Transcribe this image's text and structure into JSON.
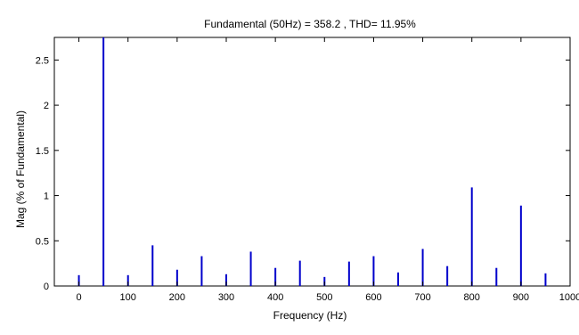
{
  "chart_data": {
    "type": "bar",
    "title": "Fundamental (50Hz) = 358.2 , THD= 11.95%",
    "xlabel": "Frequency (Hz)",
    "ylabel": "Mag (% of Fundamental)",
    "xlim": [
      -50,
      1000
    ],
    "ylim": [
      0,
      2.75
    ],
    "xticks": [
      0,
      100,
      200,
      300,
      400,
      500,
      600,
      700,
      800,
      900,
      1000
    ],
    "xtick_labels": [
      "0",
      "100",
      "200",
      "300",
      "400",
      "500",
      "600",
      "700",
      "800",
      "900",
      "1000"
    ],
    "yticks": [
      0,
      0.5,
      1,
      1.5,
      2,
      2.5
    ],
    "ytick_labels": [
      "0",
      "0.5",
      "1",
      "1.5",
      "2",
      "2.5"
    ],
    "grid": false,
    "legend": "none",
    "color": "#0000cc",
    "series": [
      {
        "x": [
          0,
          50,
          100,
          150,
          200,
          250,
          300,
          350,
          400,
          450,
          500,
          550,
          600,
          650,
          700,
          750,
          800,
          850,
          900,
          950
        ],
        "values": [
          0.12,
          2.75,
          0.12,
          0.45,
          0.18,
          0.33,
          0.13,
          0.38,
          0.2,
          0.28,
          0.1,
          0.27,
          0.33,
          0.15,
          0.41,
          0.22,
          1.09,
          0.2,
          0.89,
          0.14
        ]
      }
    ]
  }
}
